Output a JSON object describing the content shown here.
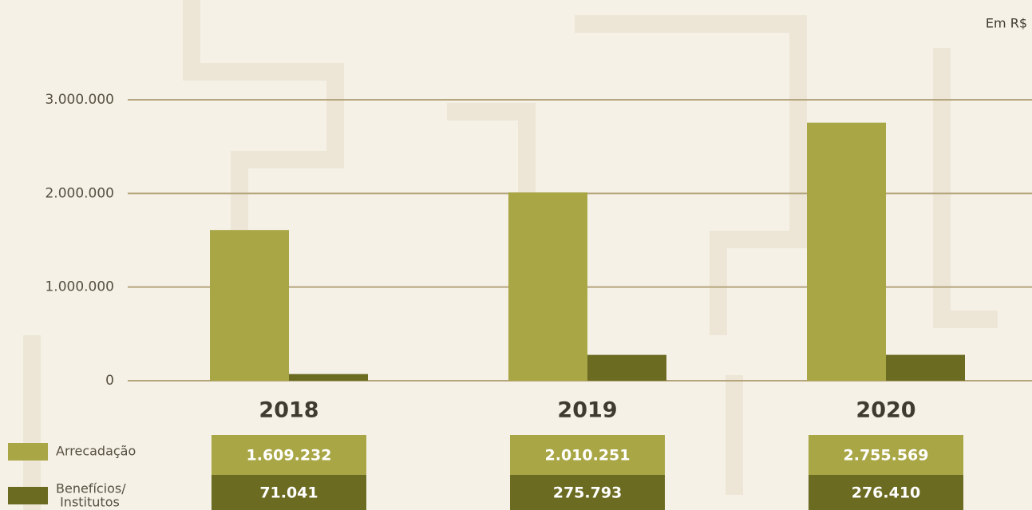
{
  "chart_data": {
    "type": "bar",
    "unit_label": "Em R$",
    "categories": [
      "2018",
      "2019",
      "2020"
    ],
    "series": [
      {
        "name": "Arrecadação",
        "color": "#a9a646",
        "values": [
          1609232,
          2010251,
          2755569
        ],
        "value_labels": [
          "1.609.232",
          "2.010.251",
          "2.755.569"
        ]
      },
      {
        "name": "Benefícios/ Institutos",
        "color": "#6b6b22",
        "values": [
          71041,
          275793,
          276410
        ],
        "value_labels": [
          "71.041",
          "275.793",
          "276.410"
        ]
      }
    ],
    "ylim": [
      0,
      3000000
    ],
    "yticks": [
      0,
      {
        "value": 1000000,
        "label": "1.000.000"
      },
      {
        "value": 2000000,
        "label": "2.000.000"
      },
      {
        "value": 3000000,
        "label": "3.000.000"
      }
    ],
    "grid": true
  }
}
